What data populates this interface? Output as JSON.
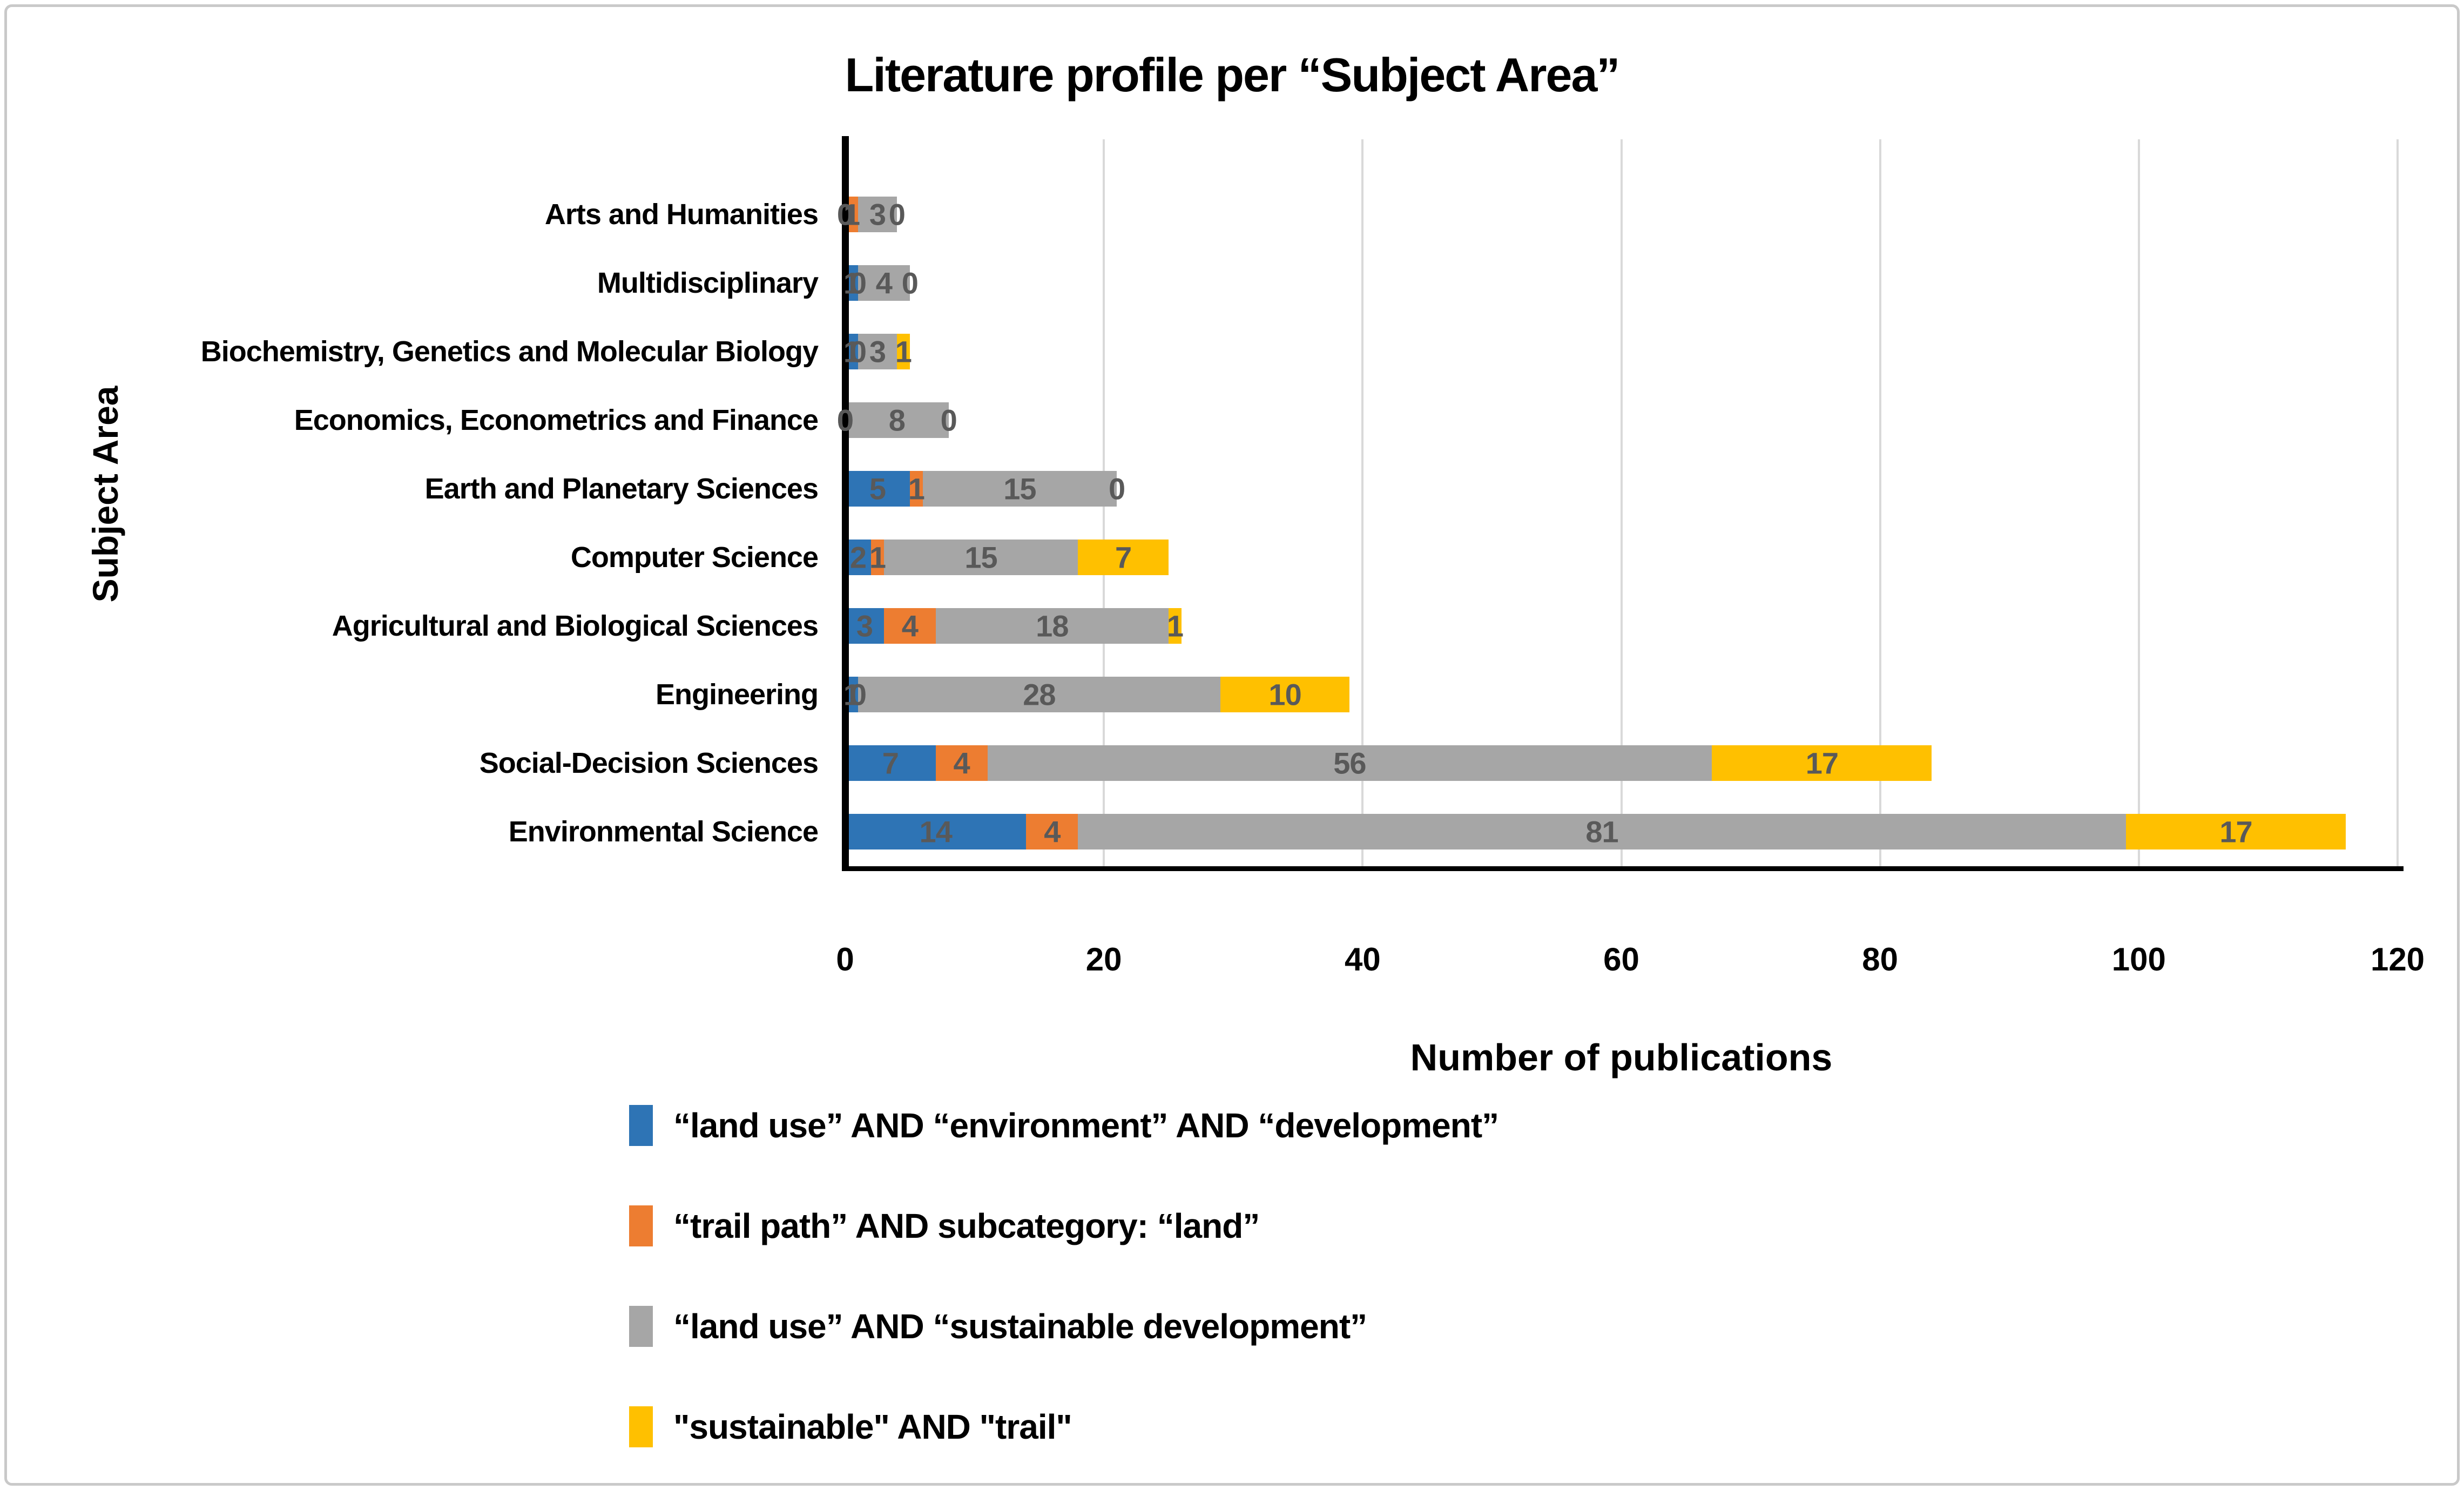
{
  "title": "Literature profile per “Subject Area”",
  "axes": {
    "x_title": "Number of publications",
    "y_title": "Subject Area"
  },
  "colors": {
    "data_label": "#595959",
    "gridline": "#d9d9d9",
    "axis": "#000000",
    "frame_border": "#c9c9c9"
  },
  "chart_data": {
    "type": "bar",
    "orientation": "horizontal",
    "stacked": true,
    "title": "Literature profile per “Subject Area”",
    "xlabel": "Number of publications",
    "ylabel": "Subject Area",
    "xlim": [
      0,
      120
    ],
    "x_ticks": [
      0,
      20,
      40,
      60,
      80,
      100,
      120
    ],
    "grid": true,
    "legend_position": "bottom-left",
    "data_labels_shown": true,
    "categories": [
      "Arts and Humanities",
      "Multidisciplinary",
      "Biochemistry, Genetics and Molecular Biology",
      "Economics, Econometrics and Finance",
      "Earth and Planetary Sciences",
      "Computer Science",
      "Agricultural and Biological Sciences",
      "Engineering",
      "Social-Decision Sciences",
      "Environmental Science"
    ],
    "series": [
      {
        "name": "“land use” AND “environment” AND “development”",
        "color": "#2e74b5",
        "values": [
          0,
          1,
          1,
          0,
          5,
          2,
          3,
          1,
          7,
          14
        ]
      },
      {
        "name": "“trail path” AND subcategory: “land”",
        "color": "#ed7d31",
        "values": [
          1,
          0,
          0,
          0,
          1,
          1,
          4,
          0,
          4,
          4
        ]
      },
      {
        "name": "“land use” AND “sustainable development”",
        "color": "#a6a6a6",
        "values": [
          3,
          4,
          3,
          8,
          15,
          15,
          18,
          28,
          56,
          81
        ]
      },
      {
        "name": "\"sustainable\" AND \"trail\"",
        "color": "#ffc000",
        "values": [
          0,
          0,
          1,
          0,
          0,
          7,
          1,
          10,
          17,
          17
        ]
      }
    ]
  }
}
